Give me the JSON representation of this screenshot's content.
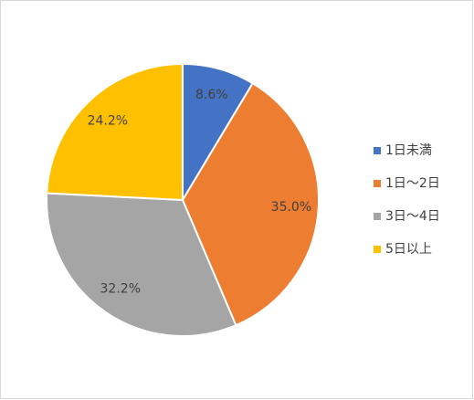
{
  "chart_data": {
    "type": "pie",
    "categories": [
      "1日未満",
      "1日～2日",
      "3日～4日",
      "5日以上"
    ],
    "values": [
      8.6,
      35.0,
      32.2,
      24.2
    ],
    "value_labels": [
      "8.6%",
      "35.0%",
      "32.2%",
      "24.2%"
    ],
    "colors": [
      "#4472c4",
      "#ed7d31",
      "#a5a5a5",
      "#ffc000"
    ],
    "legend": "right"
  }
}
